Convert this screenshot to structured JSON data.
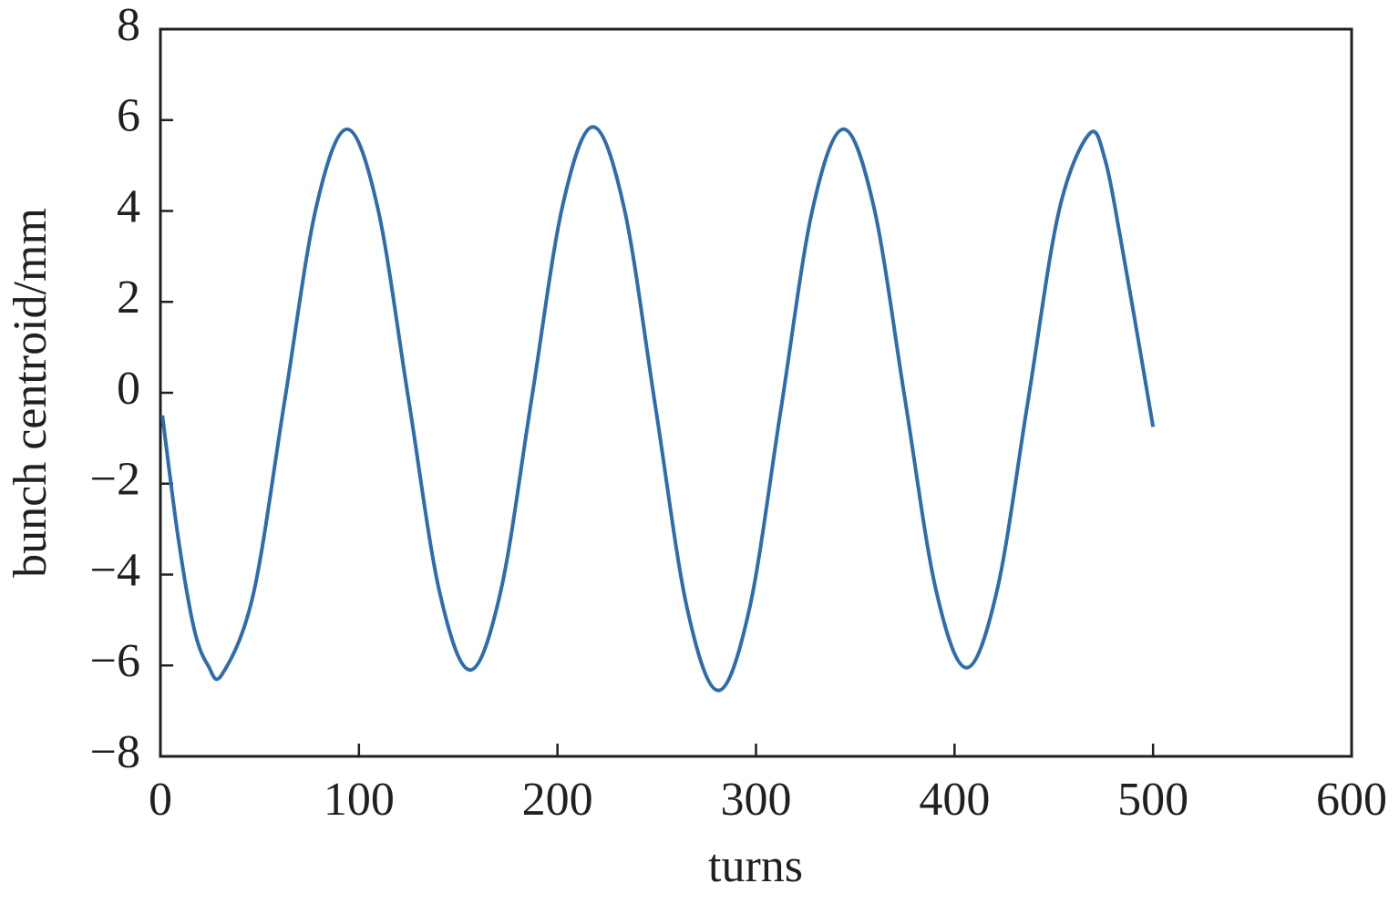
{
  "chart_data": {
    "type": "line",
    "x_label": "turns",
    "y_label": "bunch centroid/mm",
    "x": [
      1,
      9,
      17,
      24,
      31,
      46.75,
      62.5,
      78.25,
      94,
      109.5,
      125,
      140.5,
      156,
      171.5,
      187,
      202.5,
      218,
      233.75,
      249.5,
      265.25,
      281,
      296.75,
      312.5,
      328.25,
      344,
      359.5,
      375,
      390.5,
      406,
      421.5,
      437,
      452.5,
      468,
      476,
      484,
      492,
      500
    ],
    "series": [
      {
        "name": "bunch centroid",
        "color": "#2e6dad",
        "values": [
          -0.5,
          -3.2,
          -5.2,
          -6.0,
          -6.2,
          -4.44,
          -0.2,
          4.04,
          5.8,
          4.06,
          -0.15,
          -4.36,
          -6.1,
          -4.35,
          -0.13,
          4.1,
          5.85,
          4.03,
          -0.35,
          -4.73,
          -6.55,
          -4.74,
          -0.38,
          3.99,
          5.8,
          4.06,
          -0.13,
          -4.31,
          -6.05,
          -4.33,
          -0.18,
          3.98,
          5.7,
          5.1,
          3.3,
          1.3,
          -0.75
        ]
      }
    ],
    "xlim": [
      0,
      600
    ],
    "xticks": [
      0,
      100,
      200,
      300,
      400,
      500,
      600
    ],
    "ylim": [
      -8,
      8
    ],
    "yticks": [
      {
        "value": -8,
        "label": "−8"
      },
      {
        "value": -6,
        "label": "−6"
      },
      {
        "value": -4,
        "label": "−4"
      },
      {
        "value": -2,
        "label": "−2"
      },
      0,
      2,
      4,
      6,
      8
    ],
    "grid": false
  }
}
